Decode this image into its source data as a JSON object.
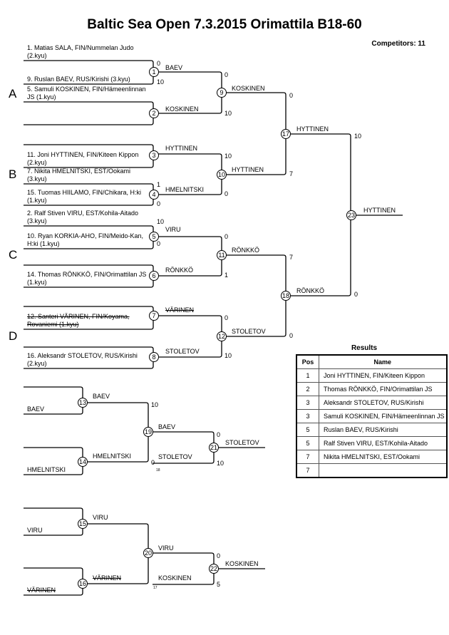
{
  "title": "Baltic Sea Open  7.3.2015  Orimattila   B18-60",
  "competitors": "Competitors: 11",
  "pools": [
    "A",
    "B",
    "C",
    "D"
  ],
  "entrants": {
    "e1": "1. Matias SALA, FIN/Nummelan Judo (2.kyu)",
    "e9": "9. Ruslan BAEV, RUS/Kirishi (3.kyu)",
    "e5": "5. Samuli KOSKINEN, FIN/Hämeenlinnan JS (1.kyu)",
    "e11": "11. Joni HYTTINEN, FIN/Kiteen Kippon (2.kyu)",
    "e7": "7. Nikita HMELNITSKI, EST/Ookami (3.kyu)",
    "e15": "15. Tuomas HIILAMO, FIN/Chikara, H:ki (1.kyu)",
    "e2": "2. Ralf Stiven VIRU, EST/Kohila-Aitado (3.kyu)",
    "e10": "10. Ryan KORKIA-AHO, FIN/Meido-Kan, H:ki (1.kyu)",
    "e14": "14. Thomas RÖNKKÖ, FIN/Orimattilan JS (1.kyu)",
    "e12": "12. Santeri VÄRINEN, FIN/Koyama, Rovaniemi (1.kyu)",
    "e16": "16. Aleksandr STOLETOV, RUS/Kirishi (2.kyu)",
    "r13": "BAEV",
    "r14": "HMELNITSKI",
    "r15": "VIRU",
    "r16": "VÄRINEN"
  },
  "winners": {
    "m1": "BAEV",
    "m2": "KOSKINEN",
    "m3": "HYTTINEN",
    "m4": "HMELNITSKI",
    "m5": "VIRU",
    "m6": "RÖNKKÖ",
    "m7": "VÄRINEN",
    "m8": "STOLETOV",
    "m9": "KOSKINEN",
    "m10": "HYTTINEN",
    "m11": "RÖNKKÖ",
    "m12": "STOLETOV",
    "m17": "HYTTINEN",
    "m18": "RÖNKKÖ",
    "m23": "HYTTINEN",
    "m13": "BAEV",
    "m14": "HMELNITSKI",
    "m19": "BAEV",
    "m19b": "STOLETOV",
    "m21": "STOLETOV",
    "m15": "VIRU",
    "m16": "VÄRINEN",
    "m20": "VIRU",
    "m20b": "KOSKINEN",
    "m22": "KOSKINEN"
  },
  "struck": [
    "e12",
    "r16",
    "m7",
    "m16"
  ],
  "scores": {
    "m1a": "0",
    "m1b": "10",
    "m4a": "1",
    "m4b": "0",
    "m5a": "10",
    "m5b": "0",
    "m9a": "0",
    "m9b": "10",
    "m10a": "10",
    "m10b": "0",
    "m11a": "0",
    "m11b": "1",
    "m12a": "0",
    "m12b": "10",
    "m17a": "0",
    "m17b": "7",
    "m18a": "7",
    "m18b": "0",
    "m23a": "10",
    "m23b": "0",
    "m13a": "10",
    "m19b": "0",
    "m21a": "0",
    "m21b": "10",
    "m22a": "0",
    "m22b": "5",
    "note18": "18",
    "note17": "17"
  },
  "match_numbers": [
    "1",
    "2",
    "3",
    "4",
    "5",
    "6",
    "7",
    "8",
    "9",
    "10",
    "11",
    "12",
    "13",
    "14",
    "15",
    "16",
    "17",
    "18",
    "19",
    "20",
    "21",
    "22",
    "23"
  ],
  "results": {
    "title": "Results",
    "headers": [
      "Pos",
      "Name"
    ],
    "rows": [
      {
        "pos": "1",
        "name": "Joni HYTTINEN, FIN/Kiteen Kippon"
      },
      {
        "pos": "2",
        "name": "Thomas RÖNKKÖ, FIN/Orimattilan JS"
      },
      {
        "pos": "3",
        "name": "Aleksandr STOLETOV, RUS/Kirishi"
      },
      {
        "pos": "3",
        "name": "Samuli KOSKINEN, FIN/Hämeenlinnan JS"
      },
      {
        "pos": "5",
        "name": "Ruslan BAEV, RUS/Kirishi"
      },
      {
        "pos": "5",
        "name": "Ralf Stiven VIRU, EST/Kohila-Aitado"
      },
      {
        "pos": "7",
        "name": "Nikita HMELNITSKI, EST/Ookami"
      },
      {
        "pos": "7",
        "name": ""
      }
    ]
  }
}
